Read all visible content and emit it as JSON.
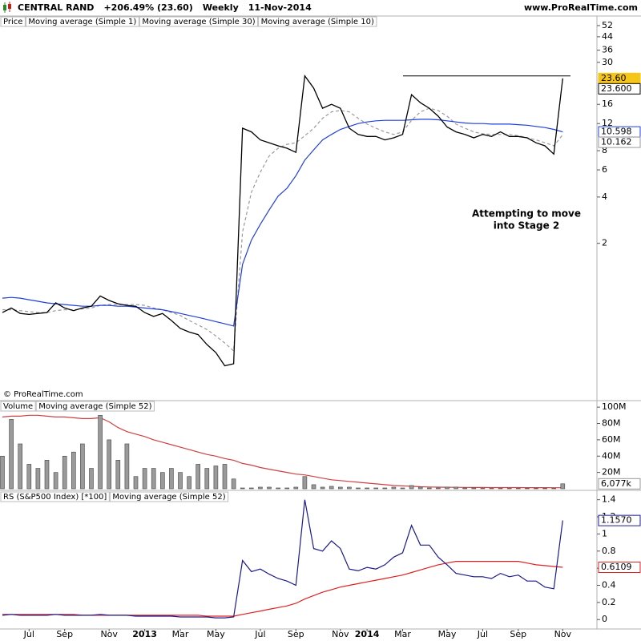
{
  "header": {
    "symbol": "CENTRAL RAND",
    "change": "+206.49% (23.60)",
    "period": "Weekly",
    "date": "11-Nov-2014",
    "site": "www.ProRealTime.com",
    "copyright": "© ProRealTime.com"
  },
  "annotation": [
    "Attempting to move",
    "into Stage 2"
  ],
  "chart_data": [
    {
      "type": "line",
      "log_scale": true,
      "ylim": [
        0.19,
        60
      ],
      "yticks": [
        52,
        44,
        36,
        30,
        16,
        12,
        8,
        6,
        4,
        2
      ],
      "price": {
        "name": "Price",
        "value": 23.6,
        "value_label": "23.60",
        "color": "#f5c518"
      },
      "resistance": 24.5,
      "series": [
        {
          "name": "Moving average (Simple 1)",
          "color": "#000000",
          "legend_color": "#1a1a8c",
          "last_label": "23.600",
          "values": [
            0.71,
            0.76,
            0.7,
            0.69,
            0.7,
            0.71,
            0.82,
            0.76,
            0.73,
            0.76,
            0.78,
            0.91,
            0.85,
            0.81,
            0.79,
            0.78,
            0.71,
            0.67,
            0.7,
            0.63,
            0.56,
            0.53,
            0.51,
            0.44,
            0.39,
            0.32,
            0.33,
            11.2,
            10.6,
            9.4,
            9.0,
            8.6,
            8.3,
            7.8,
            24.5,
            20.4,
            15.1,
            16.0,
            15.1,
            11.2,
            10.2,
            9.9,
            9.9,
            9.4,
            9.7,
            10.2,
            18.5,
            16.4,
            15.1,
            13.4,
            11.4,
            10.6,
            10.2,
            9.7,
            10.2,
            9.9,
            10.6,
            9.9,
            9.9,
            9.7,
            9.0,
            8.6,
            7.6,
            23.6
          ]
        },
        {
          "name": "Moving average (Simple 30)",
          "color": "#1f3fdc",
          "legend_color": "#1f3fdc",
          "last_label": "10.598",
          "values": [
            0.88,
            0.89,
            0.88,
            0.86,
            0.84,
            0.82,
            0.81,
            0.8,
            0.79,
            0.78,
            0.78,
            0.79,
            0.79,
            0.78,
            0.78,
            0.77,
            0.76,
            0.75,
            0.74,
            0.72,
            0.7,
            0.68,
            0.66,
            0.64,
            0.62,
            0.6,
            0.58,
            1.46,
            2.1,
            2.66,
            3.3,
            4.05,
            4.56,
            5.5,
            6.95,
            8.1,
            9.4,
            10.2,
            11.0,
            11.5,
            12.0,
            12.3,
            12.5,
            12.6,
            12.6,
            12.6,
            12.7,
            12.8,
            12.8,
            12.7,
            12.5,
            12.3,
            12.1,
            12.0,
            12.0,
            11.9,
            11.9,
            11.9,
            11.8,
            11.7,
            11.5,
            11.3,
            11.0,
            10.598
          ]
        },
        {
          "name": "Moving average (Simple 10)",
          "color": "#9a9a9a",
          "legend_color": "#aaaaaa",
          "dash": true,
          "last_label": "10.162",
          "values": [
            0.74,
            0.74,
            0.73,
            0.72,
            0.71,
            0.71,
            0.73,
            0.74,
            0.74,
            0.75,
            0.76,
            0.79,
            0.8,
            0.8,
            0.8,
            0.8,
            0.79,
            0.76,
            0.74,
            0.71,
            0.68,
            0.63,
            0.59,
            0.55,
            0.5,
            0.45,
            0.4,
            2.37,
            4.3,
            5.8,
            7.4,
            8.3,
            8.8,
            9.0,
            10.0,
            11.2,
            13.0,
            14.3,
            14.6,
            14.3,
            13.0,
            11.9,
            11.2,
            10.6,
            10.2,
            10.6,
            12.6,
            14.3,
            15.1,
            14.6,
            13.4,
            11.9,
            11.2,
            10.6,
            10.3,
            10.2,
            10.2,
            10.2,
            10.0,
            9.7,
            9.4,
            9.0,
            8.6,
            10.162
          ]
        }
      ]
    },
    {
      "type": "bar",
      "ylim": [
        0,
        108000000
      ],
      "yticks": [
        {
          "value": 100000000,
          "label": "100M"
        },
        {
          "value": 80000000,
          "label": "80M"
        },
        {
          "value": 60000000,
          "label": "60M"
        },
        {
          "value": 40000000,
          "label": "40M"
        },
        {
          "value": 20000000,
          "label": "20M"
        }
      ],
      "series": [
        {
          "name": "Volume",
          "type": "bar",
          "color": "#9a9a9a",
          "legend_color": "#999999",
          "last_label": "6,077k",
          "values": [
            40000000,
            85000000,
            55000000,
            30000000,
            25000000,
            35000000,
            20000000,
            40000000,
            45000000,
            55000000,
            25000000,
            90000000,
            60000000,
            35000000,
            55000000,
            15000000,
            25000000,
            25000000,
            20000000,
            25000000,
            20000000,
            15000000,
            30000000,
            25000000,
            28000000,
            30000000,
            12000000,
            1000000,
            1000000,
            2000000,
            2000000,
            1000000,
            1000000,
            2000000,
            15000000,
            5000000,
            2000000,
            3000000,
            2000000,
            2000000,
            1000000,
            1000000,
            1000000,
            1000000,
            2000000,
            1000000,
            4000000,
            2000000,
            1000000,
            1000000,
            2000000,
            2000000,
            1000000,
            1000000,
            500000,
            500000,
            500000,
            500000,
            500000,
            500000,
            500000,
            500000,
            500000,
            6077000
          ]
        },
        {
          "name": "Moving average (Simple 52)",
          "type": "line",
          "color": "#d04040",
          "legend_color": "#e06060",
          "values": [
            88000000,
            89000000,
            89000000,
            90000000,
            90000000,
            89000000,
            88000000,
            88000000,
            87000000,
            86000000,
            86000000,
            87000000,
            82000000,
            75000000,
            70000000,
            67000000,
            64000000,
            60000000,
            57000000,
            54000000,
            51000000,
            48000000,
            45000000,
            42000000,
            40000000,
            37000000,
            35000000,
            31000000,
            29000000,
            26000000,
            24000000,
            22000000,
            20000000,
            18000000,
            17000000,
            15000000,
            13000000,
            11000000,
            10000000,
            9000000,
            8000000,
            7000000,
            6000000,
            5000000,
            4000000,
            3500000,
            3000000,
            2500000,
            2200000,
            2000000,
            1900000,
            1800000,
            1700000,
            1600000,
            1600000,
            1500000,
            1500000,
            1500000,
            1500000,
            1400000,
            1400000,
            1400000,
            1300000,
            1300000
          ]
        }
      ]
    },
    {
      "type": "line",
      "ylim": [
        -0.11,
        1.5
      ],
      "yticks": [
        1.4,
        1.2,
        1,
        0.8,
        0.6,
        0.4,
        0.2,
        0
      ],
      "categories": [
        null,
        null,
        null,
        "Jul",
        null,
        null,
        null,
        "Sep",
        null,
        null,
        null,
        null,
        "Nov",
        null,
        null,
        null,
        "2013",
        null,
        null,
        null,
        "Mar",
        null,
        null,
        null,
        "May",
        null,
        null,
        null,
        null,
        "Jul",
        null,
        null,
        null,
        "Sep",
        null,
        null,
        null,
        null,
        "Nov",
        null,
        null,
        "2014",
        null,
        null,
        null,
        "Mar",
        null,
        null,
        null,
        null,
        "May",
        null,
        null,
        null,
        "Jul",
        null,
        null,
        null,
        "Sep",
        null,
        null,
        null,
        null,
        "Nov"
      ],
      "series": [
        {
          "name": "RS (S&P500 Index) [*100]",
          "color": "#1a1a8c",
          "legend_color": "#1a1a8c",
          "last_label": "1.1570",
          "values": [
            0.05,
            0.06,
            0.05,
            0.05,
            0.05,
            0.05,
            0.06,
            0.05,
            0.05,
            0.05,
            0.05,
            0.06,
            0.05,
            0.05,
            0.05,
            0.04,
            0.04,
            0.04,
            0.04,
            0.04,
            0.03,
            0.03,
            0.03,
            0.03,
            0.02,
            0.02,
            0.03,
            0.69,
            0.56,
            0.59,
            0.53,
            0.48,
            0.45,
            0.4,
            1.4,
            0.83,
            0.8,
            0.92,
            0.83,
            0.59,
            0.57,
            0.61,
            0.59,
            0.64,
            0.73,
            0.78,
            1.1,
            0.87,
            0.87,
            0.73,
            0.64,
            0.54,
            0.52,
            0.5,
            0.5,
            0.48,
            0.54,
            0.5,
            0.52,
            0.45,
            0.45,
            0.38,
            0.36,
            1.157
          ]
        },
        {
          "name": "Moving average (Simple 52)",
          "color": "#e02020",
          "legend_color": "#e02020",
          "last_label": "0.6109",
          "values": [
            0.06,
            0.06,
            0.06,
            0.06,
            0.06,
            0.06,
            0.06,
            0.06,
            0.06,
            0.05,
            0.05,
            0.05,
            0.05,
            0.05,
            0.05,
            0.05,
            0.05,
            0.05,
            0.05,
            0.05,
            0.05,
            0.05,
            0.05,
            0.04,
            0.04,
            0.04,
            0.04,
            0.06,
            0.08,
            0.1,
            0.12,
            0.14,
            0.16,
            0.19,
            0.24,
            0.28,
            0.32,
            0.35,
            0.38,
            0.4,
            0.42,
            0.44,
            0.46,
            0.48,
            0.5,
            0.52,
            0.55,
            0.58,
            0.61,
            0.64,
            0.66,
            0.68,
            0.68,
            0.68,
            0.68,
            0.68,
            0.68,
            0.68,
            0.68,
            0.66,
            0.64,
            0.63,
            0.62,
            0.6109
          ]
        }
      ]
    }
  ]
}
